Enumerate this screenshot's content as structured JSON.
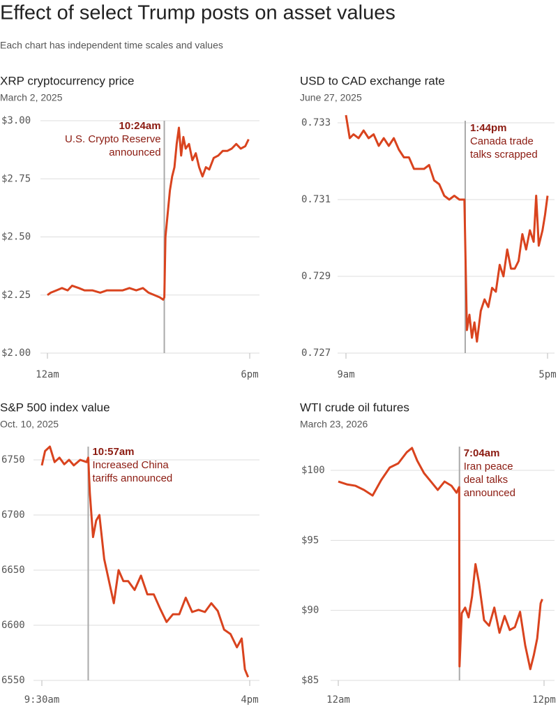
{
  "title": "Effect of select Trump posts on asset values",
  "subtitle": "Each chart has independent time scales and values",
  "chart_data": [
    {
      "type": "line",
      "title": "XRP cryptocurrency price",
      "subtitle": "March 2, 2025",
      "color": "#d9431e",
      "xlim": [
        0,
        18
      ],
      "xticks": [
        {
          "value": 0,
          "label": "12am"
        },
        {
          "value": 18,
          "label": "6pm"
        }
      ],
      "ylim": [
        2.0,
        3.0
      ],
      "yticks": [
        {
          "value": 2.0,
          "label": "$2.00"
        },
        {
          "value": 2.25,
          "label": "$2.25"
        },
        {
          "value": 2.5,
          "label": "$2.50"
        },
        {
          "value": 2.75,
          "label": "$2.75"
        },
        {
          "value": 3.0,
          "label": "$3.00"
        }
      ],
      "grid": true,
      "annotations": [
        {
          "x": 10.4,
          "label": "10:24am",
          "text": [
            "U.S. Crypto Reserve",
            "announced"
          ]
        }
      ],
      "x": [
        0,
        0.3,
        0.8,
        1.3,
        1.8,
        2.2,
        2.8,
        3.3,
        4,
        4.7,
        5.3,
        6,
        6.7,
        7.3,
        7.9,
        8.5,
        9,
        9.5,
        10,
        10.3,
        10.4,
        10.5,
        10.7,
        10.9,
        11.1,
        11.3,
        11.5,
        11.7,
        11.9,
        12.1,
        12.3,
        12.6,
        12.9,
        13.2,
        13.5,
        13.8,
        14.1,
        14.4,
        14.8,
        15.2,
        15.6,
        16,
        16.4,
        16.8,
        17.2,
        17.6,
        17.9
      ],
      "values": [
        2.25,
        2.26,
        2.27,
        2.28,
        2.27,
        2.29,
        2.28,
        2.27,
        2.27,
        2.26,
        2.27,
        2.27,
        2.27,
        2.28,
        2.27,
        2.28,
        2.26,
        2.25,
        2.24,
        2.23,
        2.24,
        2.5,
        2.6,
        2.7,
        2.76,
        2.8,
        2.9,
        2.97,
        2.85,
        2.93,
        2.88,
        2.9,
        2.83,
        2.86,
        2.8,
        2.76,
        2.8,
        2.79,
        2.84,
        2.85,
        2.87,
        2.87,
        2.88,
        2.9,
        2.88,
        2.89,
        2.92
      ]
    },
    {
      "type": "line",
      "title": "USD to CAD exchange rate",
      "subtitle": "June 27, 2025",
      "color": "#d9431e",
      "xlim": [
        9,
        17
      ],
      "xticks": [
        {
          "value": 9,
          "label": "9am"
        },
        {
          "value": 17,
          "label": "5pm"
        }
      ],
      "ylim": [
        0.727,
        0.733
      ],
      "yticks": [
        0.727,
        0.729,
        0.731,
        0.733
      ],
      "grid": true,
      "annotations": [
        {
          "x": 13.733,
          "label": "1:44pm",
          "text": [
            "Canada trade",
            "talks scrapped"
          ]
        }
      ],
      "x": [
        9.0,
        9.15,
        9.3,
        9.5,
        9.7,
        9.9,
        10.1,
        10.3,
        10.5,
        10.7,
        10.9,
        11.1,
        11.3,
        11.5,
        11.7,
        11.9,
        12.1,
        12.3,
        12.5,
        12.7,
        12.9,
        13.1,
        13.3,
        13.5,
        13.7,
        13.8,
        13.9,
        14.0,
        14.1,
        14.2,
        14.35,
        14.5,
        14.65,
        14.8,
        14.95,
        15.1,
        15.25,
        15.4,
        15.55,
        15.7,
        15.85,
        16.0,
        16.15,
        16.3,
        16.45,
        16.55,
        16.65,
        16.8,
        16.9,
        17.0
      ],
      "values": [
        0.7332,
        0.7326,
        0.7327,
        0.7326,
        0.7328,
        0.7326,
        0.7327,
        0.7324,
        0.7326,
        0.7324,
        0.7326,
        0.7323,
        0.7321,
        0.7321,
        0.7318,
        0.7318,
        0.7318,
        0.7319,
        0.7315,
        0.7314,
        0.7311,
        0.731,
        0.7311,
        0.731,
        0.731,
        0.7276,
        0.728,
        0.7274,
        0.7278,
        0.7273,
        0.7281,
        0.7284,
        0.7282,
        0.7287,
        0.7286,
        0.7293,
        0.729,
        0.7297,
        0.7292,
        0.7292,
        0.7294,
        0.7301,
        0.7297,
        0.7302,
        0.7299,
        0.7311,
        0.7298,
        0.7302,
        0.7306,
        0.7311
      ]
    },
    {
      "type": "line",
      "title": "S&P 500 index value",
      "subtitle": "Oct. 10, 2025",
      "color": "#d9431e",
      "xlim": [
        9.5,
        16
      ],
      "xticks": [
        {
          "value": 9.5,
          "label": "9:30am"
        },
        {
          "value": 16,
          "label": "4pm"
        }
      ],
      "ylim": [
        6550,
        6750
      ],
      "yticks": [
        6550,
        6600,
        6650,
        6700,
        6750
      ],
      "grid": true,
      "annotations": [
        {
          "x": 10.95,
          "label": "10:57am",
          "text": [
            "Increased China",
            "tariffs announced"
          ]
        }
      ],
      "x": [
        9.5,
        9.6,
        9.75,
        9.9,
        10.05,
        10.2,
        10.35,
        10.5,
        10.7,
        10.9,
        10.95,
        11.0,
        11.1,
        11.2,
        11.3,
        11.45,
        11.6,
        11.75,
        11.9,
        12.05,
        12.2,
        12.4,
        12.6,
        12.8,
        13.0,
        13.2,
        13.4,
        13.6,
        13.8,
        14.0,
        14.2,
        14.4,
        14.6,
        14.8,
        15.0,
        15.2,
        15.4,
        15.6,
        15.75,
        15.85,
        15.95
      ],
      "values": [
        6745,
        6758,
        6762,
        6748,
        6752,
        6746,
        6750,
        6745,
        6750,
        6748,
        6752,
        6720,
        6680,
        6695,
        6700,
        6660,
        6640,
        6620,
        6650,
        6640,
        6640,
        6632,
        6645,
        6628,
        6628,
        6615,
        6603,
        6610,
        6610,
        6625,
        6612,
        6614,
        6612,
        6620,
        6613,
        6596,
        6592,
        6580,
        6588,
        6560,
        6553
      ]
    },
    {
      "type": "line",
      "title": "WTI crude oil futures",
      "subtitle": "March 23, 2026",
      "color": "#d9431e",
      "xlim": [
        0,
        12
      ],
      "xticks": [
        {
          "value": 0,
          "label": "12am"
        },
        {
          "value": 12,
          "label": "12pm"
        }
      ],
      "ylim": [
        85,
        100
      ],
      "yticks": [
        {
          "value": 85,
          "label": "$85"
        },
        {
          "value": 90,
          "label": "$90"
        },
        {
          "value": 95,
          "label": "$95"
        },
        {
          "value": 100,
          "label": "$100"
        }
      ],
      "grid": true,
      "annotations": [
        {
          "x": 7.067,
          "label": "7:04am",
          "text": [
            "Iran peace",
            "deal talks",
            "announced"
          ]
        }
      ],
      "x": [
        0,
        0.5,
        1,
        1.5,
        2,
        2.5,
        3,
        3.5,
        4,
        4.3,
        4.6,
        5,
        5.4,
        5.8,
        6.2,
        6.6,
        6.9,
        7.05,
        7.07,
        7.2,
        7.4,
        7.6,
        7.8,
        8.0,
        8.2,
        8.5,
        8.8,
        9.1,
        9.4,
        9.7,
        10.0,
        10.3,
        10.6,
        10.9,
        11.2,
        11.4,
        11.6,
        11.8,
        11.9
      ],
      "values": [
        99.2,
        99.0,
        98.9,
        98.6,
        98.2,
        99.3,
        100.2,
        100.5,
        101.3,
        101.6,
        100.7,
        99.8,
        99.2,
        98.6,
        99.2,
        98.9,
        98.4,
        98.8,
        86.0,
        89.8,
        90.2,
        89.5,
        91.0,
        93.3,
        92.0,
        89.3,
        88.9,
        90.2,
        88.4,
        89.6,
        88.6,
        88.8,
        89.9,
        87.5,
        85.8,
        86.8,
        88.0,
        90.5,
        90.8
      ]
    }
  ]
}
